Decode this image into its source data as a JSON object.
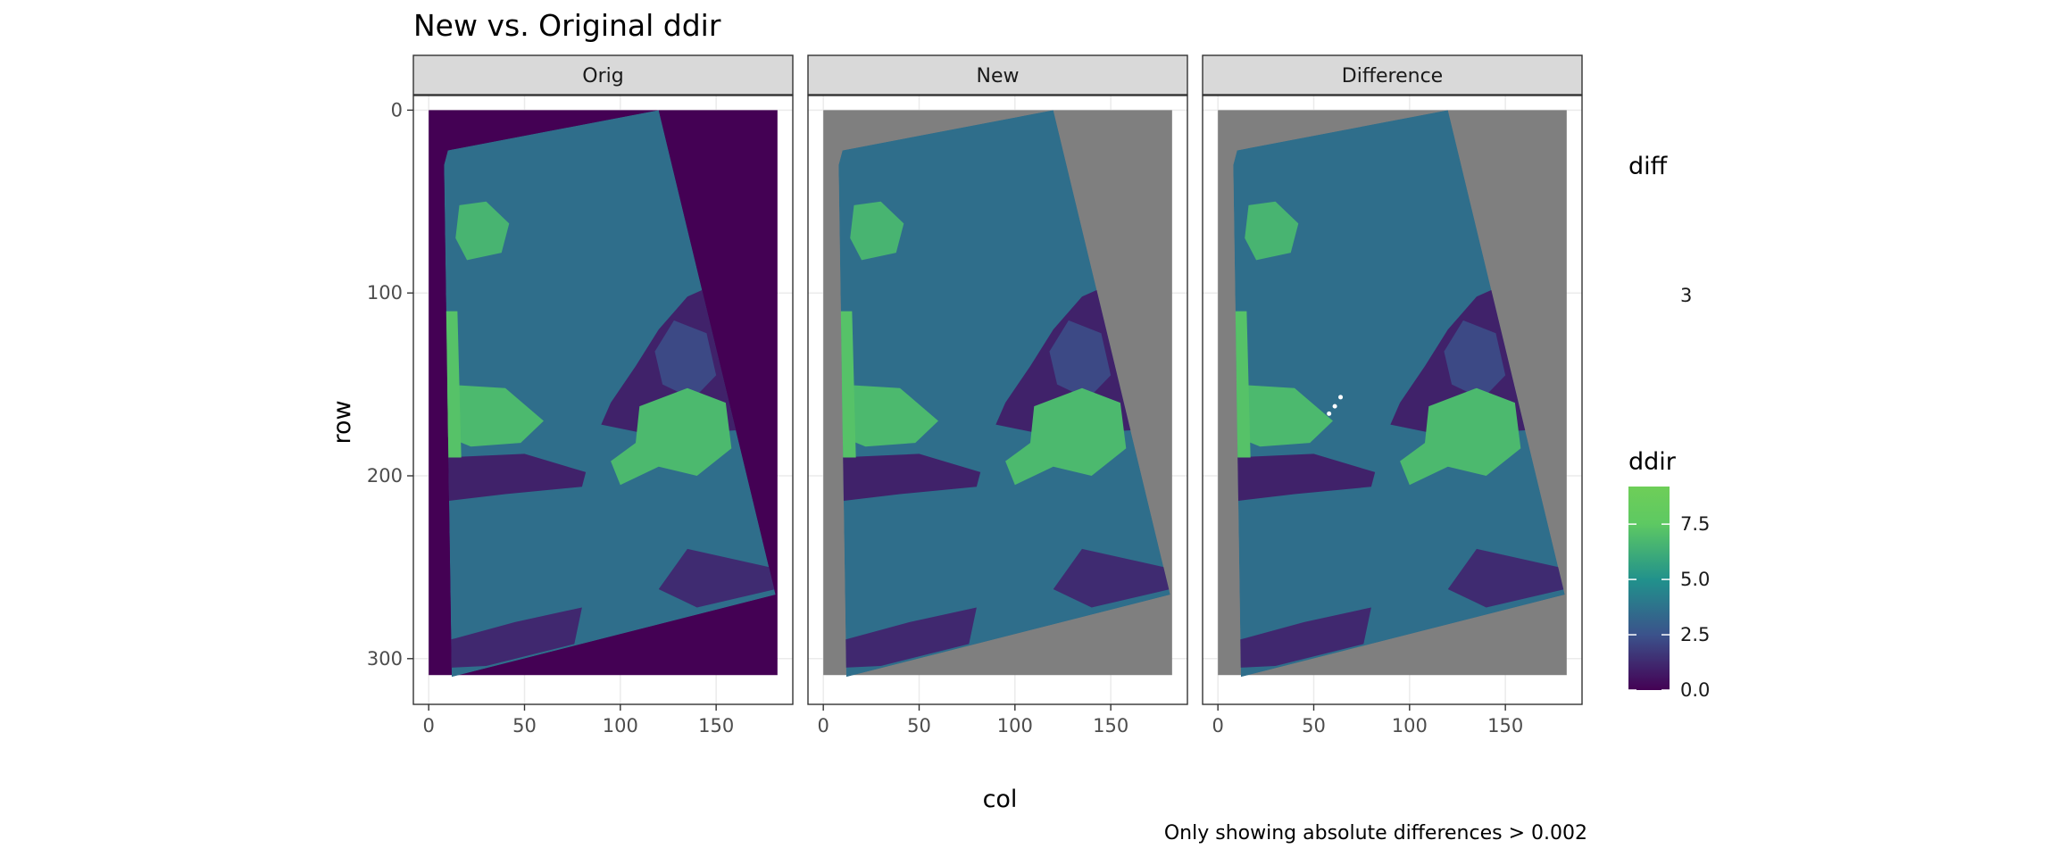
{
  "chart_data": {
    "type": "heatmap",
    "title": "New vs. Original ddir",
    "caption": "Only showing absolute differences > 0.002",
    "xlabel": "col",
    "ylabel": "row",
    "xlim": [
      -8,
      190
    ],
    "ylim": [
      -8,
      325
    ],
    "y_reversed": true,
    "x_ticks": [
      0,
      50,
      100,
      150
    ],
    "y_ticks": [
      0,
      100,
      200,
      300
    ],
    "grid": true,
    "facets": [
      {
        "label": "Orig",
        "background_fill": "#440154"
      },
      {
        "label": "New",
        "background_fill": "#7f7f7f"
      },
      {
        "label": "Difference",
        "background_fill": "#7f7f7f"
      }
    ],
    "field_extent": {
      "col": [
        0,
        182
      ],
      "row": [
        0,
        309
      ]
    },
    "region_corners": [
      {
        "col": 12,
        "row": 310
      },
      {
        "col": 8,
        "row": 30
      },
      {
        "col": 10,
        "row": 22
      },
      {
        "col": 120,
        "row": 0
      },
      {
        "col": 181,
        "row": 265
      }
    ],
    "zones": [
      {
        "name": "base",
        "value": 3.6
      },
      {
        "name": "upper-dark-wedge",
        "value": 1.0
      },
      {
        "name": "upper-mid-lobe",
        "value": 2.2
      },
      {
        "name": "mid-green-band",
        "value": 6.8
      },
      {
        "name": "right-green-blob",
        "value": 6.8
      },
      {
        "name": "lower-dark-band",
        "value": 1.0
      },
      {
        "name": "lower-left-strip",
        "value": 1.2
      },
      {
        "name": "bottom-right-wedge",
        "value": 1.3
      },
      {
        "name": "left-edge-green",
        "value": 7.2
      },
      {
        "name": "top-left-green",
        "value": 6.6
      }
    ],
    "legends": [
      {
        "title": "diff",
        "labels": [
          "3"
        ]
      },
      {
        "title": "ddir",
        "type": "colorbar",
        "range": [
          0,
          9.2
        ],
        "ticks": [
          0.0,
          2.5,
          5.0,
          7.5
        ],
        "tick_labels": [
          "0.0",
          "2.5",
          "5.0",
          "7.5"
        ],
        "colors": [
          "#440154",
          "#3b528b",
          "#21918c",
          "#5ec962"
        ]
      }
    ],
    "difference_points": [
      {
        "col": 58,
        "row": 166
      },
      {
        "col": 61,
        "row": 162
      },
      {
        "col": 64,
        "row": 157
      }
    ]
  }
}
